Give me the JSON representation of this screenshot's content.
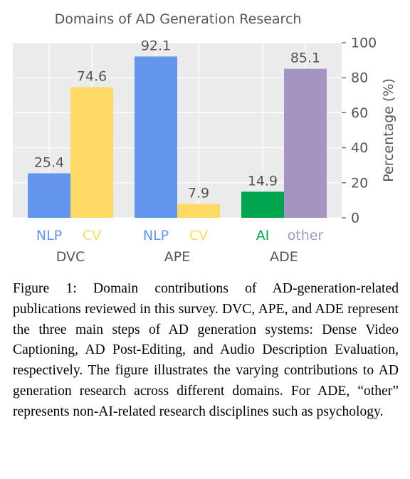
{
  "chart_data": {
    "type": "bar",
    "title": "Domains of AD Generation Research",
    "ylabel": "Percentage (%)",
    "ylim": [
      0,
      100
    ],
    "yticks": [
      0,
      20,
      40,
      60,
      80,
      100
    ],
    "y_axis_side": "right",
    "grid": true,
    "groups": [
      {
        "name": "DVC",
        "bars": [
          {
            "label": "NLP",
            "value": 25.4,
            "value_label": "25.4",
            "color": "#6495ED"
          },
          {
            "label": "CV",
            "value": 74.6,
            "value_label": "74.6",
            "color": "#FFD966"
          }
        ]
      },
      {
        "name": "APE",
        "bars": [
          {
            "label": "NLP",
            "value": 92.1,
            "value_label": "92.1",
            "color": "#6495ED"
          },
          {
            "label": "CV",
            "value": 7.9,
            "value_label": "7.9",
            "color": "#FFD966"
          }
        ]
      },
      {
        "name": "ADE",
        "bars": [
          {
            "label": "AI",
            "value": 14.9,
            "value_label": "14.9",
            "color": "#00A550"
          },
          {
            "label": "other",
            "value": 85.1,
            "value_label": "85.1",
            "color": "#A593C2"
          }
        ]
      }
    ],
    "colors": {
      "background": "#EBEBEB",
      "grid": "#FFFFFF",
      "text": "#555555"
    }
  },
  "caption": {
    "prefix": "Figure 1:",
    "text": "Domain contributions of AD-generation-related publications reviewed in this survey. DVC, APE, and ADE represent the three main steps of AD generation systems: Dense Video Captioning, AD Post-Editing, and Audio Description Evaluation, respectively. The figure illustrates the varying contributions to AD generation research across different domains. For ADE, “other” represents non-AI-related research disciplines such as psychology."
  }
}
